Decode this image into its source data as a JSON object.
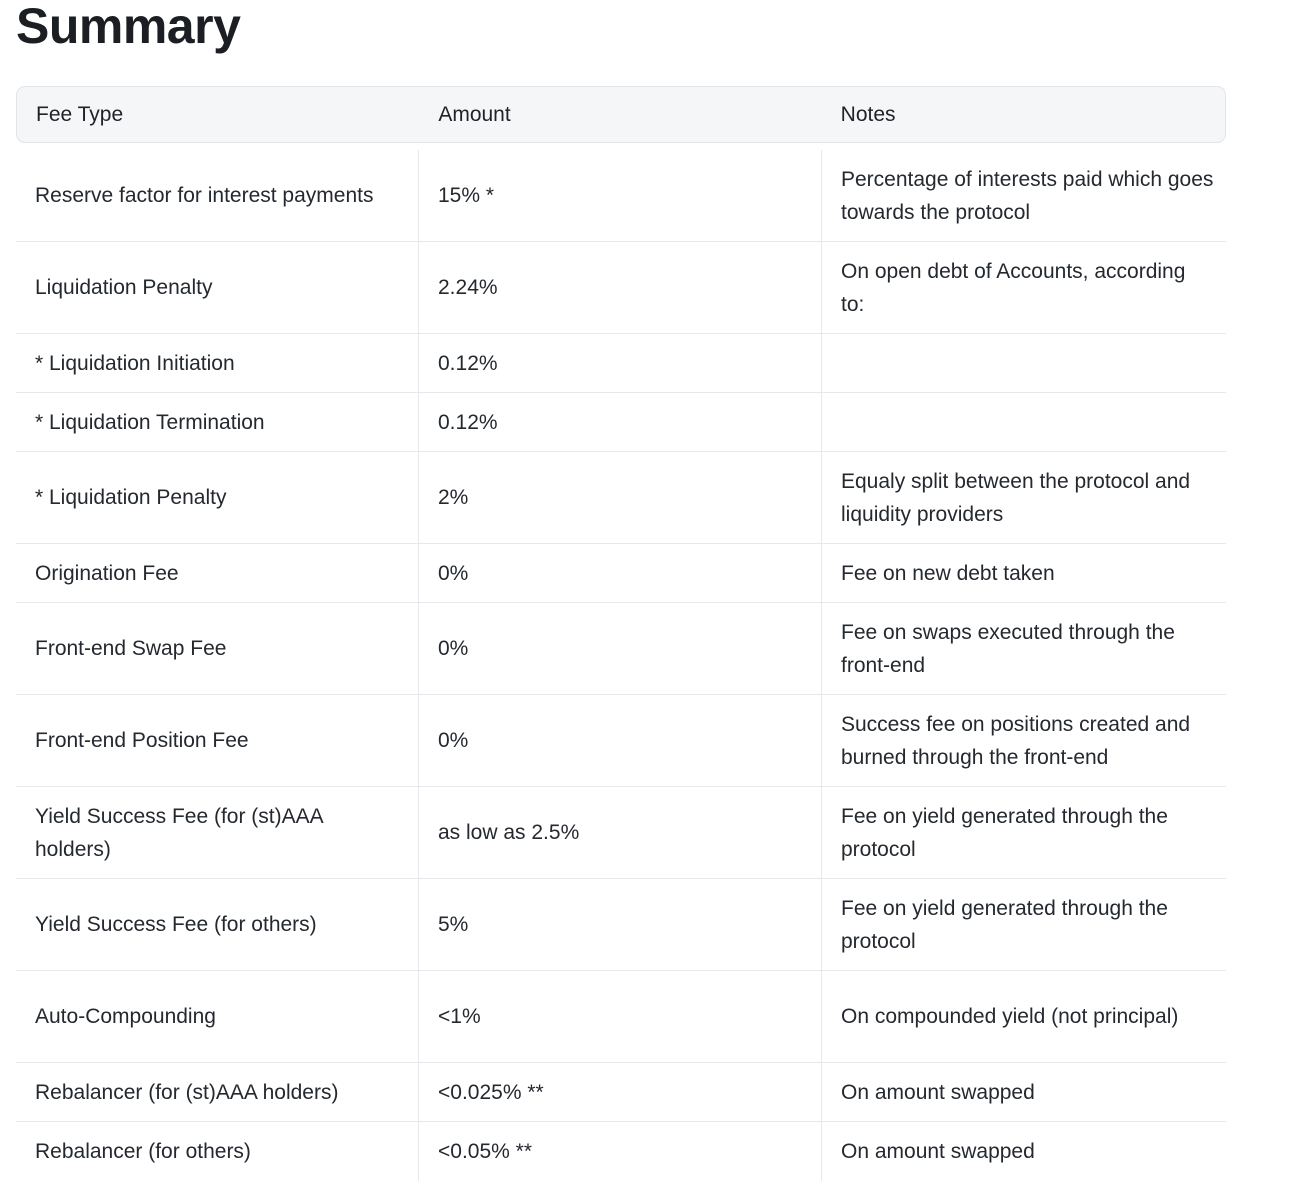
{
  "page": {
    "title": "Summary"
  },
  "table": {
    "headers": [
      "Fee Type",
      "Amount",
      "Notes"
    ],
    "rows": [
      {
        "fee_type": "Reserve factor for interest payments",
        "amount": "15% *",
        "notes": "Percentage of interests paid which goes towards the protocol"
      },
      {
        "fee_type": "Liquidation Penalty",
        "amount": "2.24%",
        "notes": "On open debt of Accounts, according to:"
      },
      {
        "fee_type": "* Liquidation Initiation",
        "amount": "0.12%",
        "notes": ""
      },
      {
        "fee_type": "* Liquidation Termination",
        "amount": "0.12%",
        "notes": ""
      },
      {
        "fee_type": "* Liquidation Penalty",
        "amount": "2%",
        "notes": "Equaly split between the protocol and liquidity providers"
      },
      {
        "fee_type": "Origination Fee",
        "amount": "0%",
        "notes": "Fee on new debt taken"
      },
      {
        "fee_type": "Front-end Swap Fee",
        "amount": "0%",
        "notes": "Fee on swaps executed through the front-end"
      },
      {
        "fee_type": "Front-end Position Fee",
        "amount": "0%",
        "notes": "Success fee on positions created and burned through the front-end"
      },
      {
        "fee_type": "Yield Success Fee (for (st)AAA holders)",
        "amount": "as low as 2.5%",
        "notes": "Fee on yield generated through the protocol"
      },
      {
        "fee_type": "Yield Success Fee (for others)",
        "amount": "5%",
        "notes": "Fee on yield generated through the protocol"
      },
      {
        "fee_type": "Auto-Compounding",
        "amount": "<1%",
        "notes": "On compounded yield (not principal)"
      },
      {
        "fee_type": "Rebalancer (for (st)AAA holders)",
        "amount": "<0.025% **",
        "notes": "On amount swapped"
      },
      {
        "fee_type": "Rebalancer (for others)",
        "amount": "<0.05% **",
        "notes": "On amount swapped"
      }
    ]
  }
}
